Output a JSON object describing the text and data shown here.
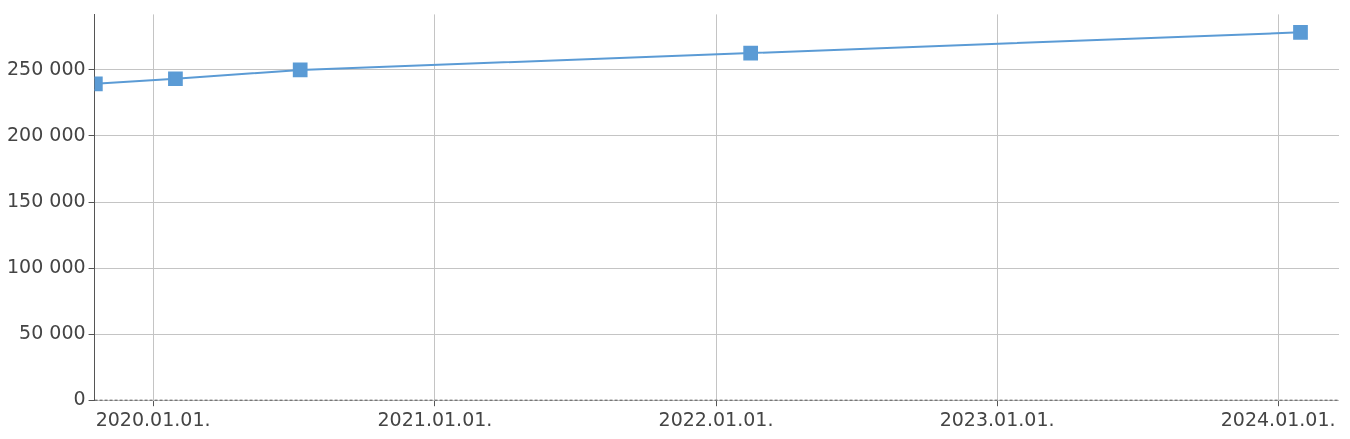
{
  "chart_data": {
    "type": "line",
    "x": [
      "2019-10-18",
      "2020-01-30",
      "2020-07-10",
      "2022-02-15",
      "2024-01-30"
    ],
    "series": [
      {
        "color": "#5b9bd5",
        "values": [
          239500,
          243300,
          250000,
          262700,
          278400
        ]
      }
    ],
    "xlim": [
      "2019-10-17",
      "2024-03-20"
    ],
    "xticks": [
      {
        "value": "2020-01-01",
        "label": "2020.01.01."
      },
      {
        "value": "2021-01-01",
        "label": "2021.01.01."
      },
      {
        "value": "2022-01-01",
        "label": "2022.01.01."
      },
      {
        "value": "2023-01-01",
        "label": "2023.01.01."
      },
      {
        "value": "2024-01-01",
        "label": "2024.01.01."
      }
    ],
    "ylim": [
      0,
      292000
    ],
    "yticks": [
      0,
      {
        "value": 50000,
        "label": "50 000"
      },
      {
        "value": 100000,
        "label": "100 000"
      },
      {
        "value": 150000,
        "label": "150 000"
      },
      {
        "value": 200000,
        "label": "200 000"
      },
      {
        "value": 250000,
        "label": "250 000"
      }
    ],
    "grid": true,
    "marker": "square",
    "line_style": "solid",
    "legend": false
  }
}
